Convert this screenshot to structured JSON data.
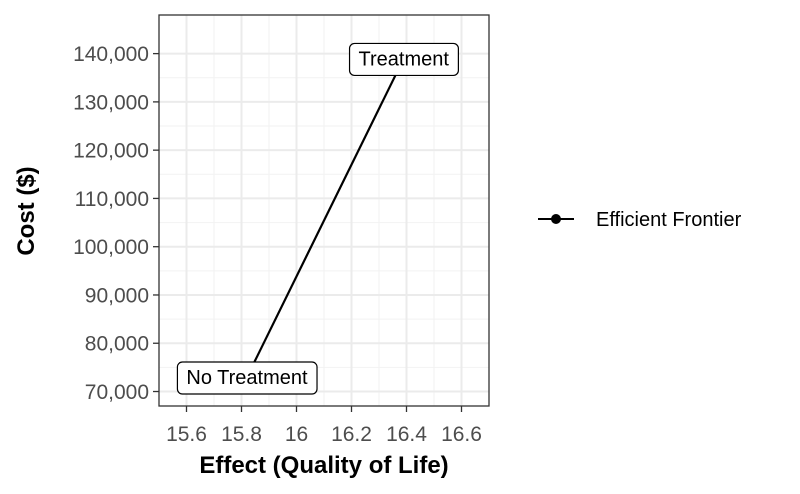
{
  "chart_data": {
    "type": "line",
    "title": "",
    "xlabel": "Effect (Quality of Life)",
    "ylabel": "Cost ($)",
    "xlim": [
      15.5,
      16.7
    ],
    "ylim": [
      67000,
      148000
    ],
    "x_ticks": [
      15.6,
      15.8,
      16.0,
      16.2,
      16.4,
      16.6
    ],
    "x_tick_labels": [
      "15.6",
      "15.8",
      "16",
      "16.2",
      "16.4",
      "16.6"
    ],
    "y_ticks": [
      70000,
      80000,
      90000,
      100000,
      110000,
      120000,
      130000,
      140000
    ],
    "y_tick_labels": [
      "70,000",
      "80,000",
      "90,000",
      "100,000",
      "110,000",
      "120,000",
      "130,000",
      "140,000"
    ],
    "grid": true,
    "legend_position": "right",
    "series": [
      {
        "name": "Efficient Frontier",
        "color": "#000000",
        "points": [
          {
            "label": "No Treatment",
            "x": 15.82,
            "y": 73000
          },
          {
            "label": "Treatment",
            "x": 16.39,
            "y": 139000
          }
        ]
      }
    ]
  }
}
